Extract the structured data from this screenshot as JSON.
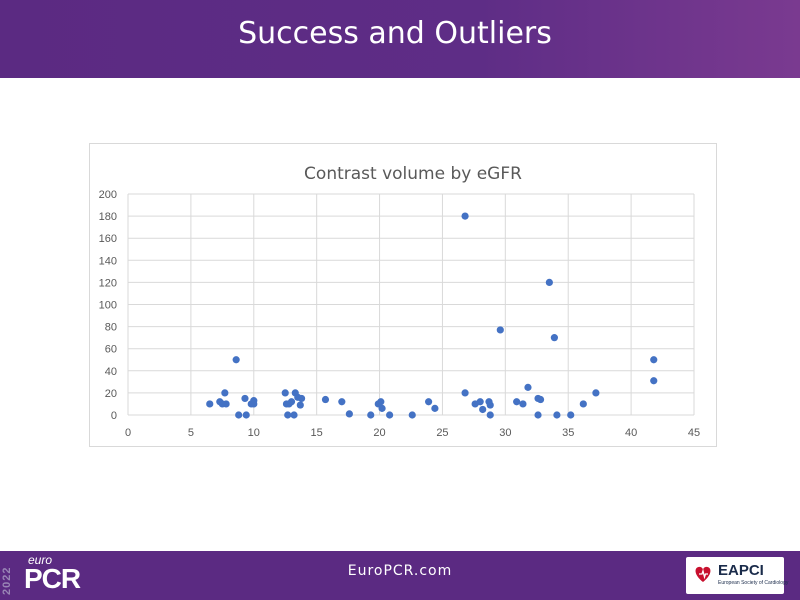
{
  "slide": {
    "title": "Success and Outliers",
    "footer_url": "EuroPCR.com",
    "logo_year": "2022",
    "logo_prefix": "euro",
    "logo_main": "PCR",
    "partner_logo": "EAPCI",
    "partner_sub": "European Society of Cardiology"
  },
  "colors": {
    "header": "#5b2a82",
    "points": "#4472c4",
    "grid": "#d9d9d9"
  },
  "chart_data": {
    "type": "scatter",
    "title": "Contrast volume by eGFR",
    "xlabel": "",
    "ylabel": "",
    "xlim": [
      0,
      45
    ],
    "ylim": [
      0,
      200
    ],
    "xticks": [
      0,
      5,
      10,
      15,
      20,
      25,
      30,
      35,
      40,
      45
    ],
    "yticks": [
      0,
      20,
      40,
      60,
      80,
      100,
      120,
      140,
      160,
      180,
      200
    ],
    "grid": true,
    "legend": "none",
    "points": [
      [
        6.5,
        10
      ],
      [
        7.3,
        12
      ],
      [
        7.5,
        10
      ],
      [
        7.7,
        20
      ],
      [
        7.8,
        10
      ],
      [
        8.6,
        50
      ],
      [
        8.8,
        0
      ],
      [
        9.3,
        15
      ],
      [
        9.4,
        0
      ],
      [
        9.8,
        10
      ],
      [
        10.0,
        13
      ],
      [
        10.0,
        10
      ],
      [
        12.5,
        20
      ],
      [
        12.6,
        10
      ],
      [
        12.7,
        0
      ],
      [
        12.8,
        10
      ],
      [
        13.0,
        12
      ],
      [
        13.2,
        0
      ],
      [
        13.3,
        20
      ],
      [
        13.5,
        16
      ],
      [
        13.7,
        9
      ],
      [
        13.8,
        15
      ],
      [
        15.7,
        14
      ],
      [
        17.0,
        12
      ],
      [
        17.6,
        1
      ],
      [
        19.3,
        0
      ],
      [
        19.9,
        10
      ],
      [
        20.1,
        12
      ],
      [
        20.2,
        6
      ],
      [
        20.8,
        0
      ],
      [
        22.6,
        0
      ],
      [
        23.9,
        12
      ],
      [
        24.4,
        6
      ],
      [
        26.8,
        180
      ],
      [
        26.8,
        20
      ],
      [
        27.6,
        10
      ],
      [
        28.0,
        12
      ],
      [
        28.2,
        5
      ],
      [
        28.7,
        12
      ],
      [
        28.8,
        0
      ],
      [
        28.8,
        9
      ],
      [
        29.6,
        77
      ],
      [
        30.9,
        12
      ],
      [
        31.4,
        10
      ],
      [
        31.8,
        25
      ],
      [
        32.6,
        0
      ],
      [
        32.6,
        15
      ],
      [
        32.8,
        14
      ],
      [
        33.5,
        120
      ],
      [
        33.9,
        70
      ],
      [
        34.1,
        0
      ],
      [
        35.2,
        0
      ],
      [
        36.2,
        10
      ],
      [
        37.2,
        20
      ],
      [
        41.8,
        50
      ],
      [
        41.8,
        31
      ]
    ]
  }
}
